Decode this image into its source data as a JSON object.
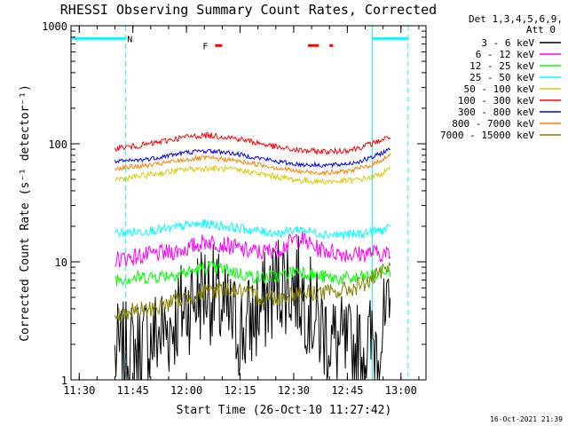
{
  "chart_data": {
    "type": "line",
    "title": "RHESSI Observing Summary Count Rates, Corrected",
    "xlabel": "Start Time (26-Oct-10 11:27:42)",
    "ylabel": "Corrected Count Rate (s⁻¹ detector⁻¹)",
    "xlim": [
      "11:27:42",
      "13:07:00"
    ],
    "ylim": [
      1,
      1000
    ],
    "y_scale": "log",
    "x_ticks": [
      "11:30",
      "11:45",
      "12:00",
      "12:15",
      "12:30",
      "12:45",
      "13:00"
    ],
    "y_ticks": [
      "1",
      "10",
      "100",
      "1000"
    ],
    "legend_header": [
      "Det 1,3,4,5,6,9,",
      "Att 0"
    ],
    "legend_position": "right",
    "timestamp": "16-Oct-2021 21:39",
    "flags": [
      {
        "label": "N",
        "color": "#00ffff",
        "segments": [
          [
            "11:28",
            "11:43"
          ],
          [
            "12:52",
            "13:02"
          ]
        ],
        "level": 780
      },
      {
        "label": "F",
        "color": "#ff0000",
        "segments": [
          [
            "12:08",
            "12:10"
          ],
          [
            "12:34",
            "12:37"
          ],
          [
            "12:40",
            "12:41"
          ]
        ],
        "level": 680
      }
    ],
    "vlines": [
      {
        "time": "11:43",
        "style": "dashed",
        "color": "#00ffff"
      },
      {
        "time": "12:52",
        "style": "solid",
        "color": "#00ffff"
      },
      {
        "time": "13:02",
        "style": "dashed",
        "color": "#00ffff"
      }
    ],
    "time_range": [
      "11:40",
      "12:57"
    ],
    "series": [
      {
        "name": "3 - 6 keV",
        "color": "#000000",
        "baseline": [
          1.6,
          1.7,
          2.2,
          2.8,
          4.5,
          6.0,
          3.5,
          2.5,
          4.0,
          7.0,
          6.0,
          3.0,
          2.0,
          1.6,
          2.0,
          3.0
        ],
        "noise": 0.9
      },
      {
        "name": "6 - 12 keV",
        "color": "#ff00ff",
        "baseline": [
          10.5,
          11.0,
          11.5,
          12.0,
          13.0,
          15.0,
          14.0,
          12.5,
          12.0,
          13.0,
          16.0,
          13.0,
          12.0,
          11.5,
          12.0,
          11.5
        ],
        "noise": 0.15
      },
      {
        "name": "12 - 25 keV",
        "color": "#00ff00",
        "baseline": [
          7.2,
          7.3,
          7.5,
          7.8,
          8.2,
          9.0,
          8.6,
          7.8,
          7.3,
          7.6,
          8.5,
          7.6,
          7.2,
          7.2,
          7.6,
          8.5
        ],
        "noise": 0.12
      },
      {
        "name": "25 - 50 keV",
        "color": "#00ffff",
        "baseline": [
          17.5,
          17.8,
          18.5,
          19.0,
          20.5,
          21.0,
          20.0,
          19.0,
          18.0,
          17.5,
          19.0,
          17.5,
          17.0,
          17.0,
          18.0,
          19.0
        ],
        "noise": 0.08
      },
      {
        "name": "50 - 100 keV",
        "color": "#e0c800",
        "baseline": [
          50,
          52,
          55,
          58,
          61,
          62,
          61,
          59,
          55,
          52,
          49,
          48,
          48,
          49,
          52,
          60
        ],
        "noise": 0.05
      },
      {
        "name": "100 - 300 keV",
        "color": "#ff0000",
        "baseline": [
          92,
          95,
          100,
          108,
          115,
          118,
          115,
          108,
          100,
          92,
          88,
          86,
          86,
          90,
          100,
          115
        ],
        "noise": 0.05
      },
      {
        "name": "300 - 800 keV",
        "color": "#0000ff",
        "baseline": [
          70,
          72,
          75,
          80,
          85,
          87,
          85,
          80,
          75,
          70,
          67,
          66,
          66,
          69,
          76,
          90
        ],
        "noise": 0.04
      },
      {
        "name": "800 - 7000 keV",
        "color": "#ff8000",
        "baseline": [
          62,
          64,
          66,
          70,
          74,
          76,
          74,
          70,
          66,
          62,
          58,
          57,
          57,
          60,
          66,
          80
        ],
        "noise": 0.04
      },
      {
        "name": "7000 - 15000 keV",
        "color": "#808000",
        "baseline": [
          3.5,
          3.8,
          4.0,
          4.5,
          5.0,
          5.5,
          6.0,
          5.5,
          5.0,
          5.0,
          5.5,
          5.5,
          5.5,
          6.0,
          7.0,
          9.0
        ],
        "noise": 0.15
      }
    ]
  }
}
